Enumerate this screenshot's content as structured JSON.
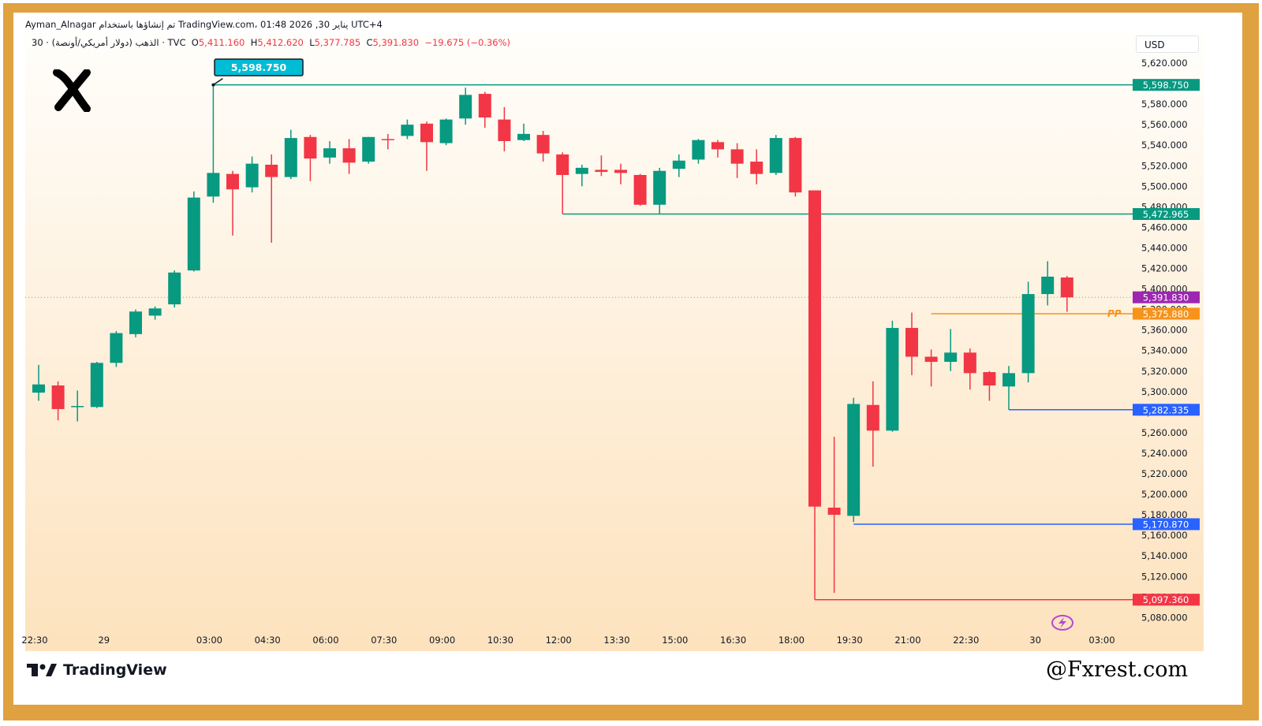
{
  "header": {
    "author": "Ayman_Alnagar",
    "created_with": "تم إنشاؤها باستخدام TradingView.com، 01:48 2026 ,30 يناير UTC+4"
  },
  "symbol_line": {
    "interval": "30",
    "description": "الذهب (دولار أمريكي/أونصة)",
    "source": "TVC",
    "open_label": "O",
    "open": "5,411.160",
    "high_label": "H",
    "high": "5,412.620",
    "low_label": "L",
    "low": "5,377.785",
    "close_label": "C",
    "close": "5,391.830",
    "change": "−19.675 (−0.36%)"
  },
  "currency": "USD",
  "branding": {
    "tradingview": "TradingView",
    "watermark": "@Fxrest.com"
  },
  "colors": {
    "bull": "#089981",
    "bear": "#f23645",
    "frame": "#e0a140",
    "pp": "#f7931a",
    "support_blue": "#2962ff",
    "low_red": "#f23645",
    "level_teal": "#089981",
    "last_price": "#9c27b0",
    "peak_callout": "#00bcd4"
  },
  "icons": {
    "logo": "x-logo-icon",
    "bolt": "lightning-bolt-icon",
    "tv": "tradingview-logo-icon"
  },
  "chart_data": {
    "type": "candlestick",
    "ylim": [
      5065,
      5630
    ],
    "y_ticks": [
      "5,620.000",
      "5,600.000",
      "5,580.000",
      "5,560.000",
      "5,540.000",
      "5,520.000",
      "5,500.000",
      "5,480.000",
      "5,460.000",
      "5,440.000",
      "5,420.000",
      "5,400.000",
      "5,380.000",
      "5,360.000",
      "5,340.000",
      "5,320.000",
      "5,300.000",
      "5,280.000",
      "5,260.000",
      "5,240.000",
      "5,220.000",
      "5,200.000",
      "5,180.000",
      "5,160.000",
      "5,140.000",
      "5,120.000",
      "5,100.000",
      "5,080.000"
    ],
    "x_tick_labels": [
      {
        "label": "22:30",
        "index": 0
      },
      {
        "label": "29",
        "index": 3
      },
      {
        "label": "03:00",
        "index": 9
      },
      {
        "label": "04:30",
        "index": 12
      },
      {
        "label": "06:00",
        "index": 15
      },
      {
        "label": "07:30",
        "index": 18
      },
      {
        "label": "09:00",
        "index": 21
      },
      {
        "label": "10:30",
        "index": 24
      },
      {
        "label": "12:00",
        "index": 27
      },
      {
        "label": "13:30",
        "index": 30
      },
      {
        "label": "15:00",
        "index": 33
      },
      {
        "label": "16:30",
        "index": 36
      },
      {
        "label": "18:00",
        "index": 39
      },
      {
        "label": "19:30",
        "index": 42
      },
      {
        "label": "21:00",
        "index": 45
      },
      {
        "label": "22:30",
        "index": 48
      },
      {
        "label": "30",
        "index": 51
      },
      {
        "label": "03:00",
        "index": 55
      }
    ],
    "candles": [
      {
        "o": 5299,
        "h": 5326,
        "l": 5291,
        "c": 5307
      },
      {
        "o": 5306,
        "h": 5310,
        "l": 5272,
        "c": 5283
      },
      {
        "o": 5286,
        "h": 5301,
        "l": 5271,
        "c": 5286
      },
      {
        "o": 5285,
        "h": 5329,
        "l": 5284,
        "c": 5328
      },
      {
        "o": 5328,
        "h": 5359,
        "l": 5324,
        "c": 5357
      },
      {
        "o": 5356,
        "h": 5380,
        "l": 5353,
        "c": 5378
      },
      {
        "o": 5374,
        "h": 5383,
        "l": 5370,
        "c": 5381
      },
      {
        "o": 5385,
        "h": 5418,
        "l": 5382,
        "c": 5416
      },
      {
        "o": 5418,
        "h": 5495,
        "l": 5417,
        "c": 5489
      },
      {
        "o": 5490,
        "h": 5598.75,
        "l": 5484,
        "c": 5513
      },
      {
        "o": 5512,
        "h": 5515,
        "l": 5452,
        "c": 5497
      },
      {
        "o": 5499,
        "h": 5529,
        "l": 5494,
        "c": 5522
      },
      {
        "o": 5521,
        "h": 5531,
        "l": 5445,
        "c": 5509
      },
      {
        "o": 5509,
        "h": 5555,
        "l": 5507,
        "c": 5547
      },
      {
        "o": 5548,
        "h": 5550,
        "l": 5505,
        "c": 5527
      },
      {
        "o": 5528,
        "h": 5544,
        "l": 5522,
        "c": 5537
      },
      {
        "o": 5537,
        "h": 5546,
        "l": 5512,
        "c": 5523
      },
      {
        "o": 5524,
        "h": 5548,
        "l": 5522,
        "c": 5548
      },
      {
        "o": 5546,
        "h": 5551,
        "l": 5536,
        "c": 5545
      },
      {
        "o": 5549,
        "h": 5565,
        "l": 5546,
        "c": 5560
      },
      {
        "o": 5561,
        "h": 5563,
        "l": 5515,
        "c": 5543
      },
      {
        "o": 5542,
        "h": 5566,
        "l": 5540,
        "c": 5565
      },
      {
        "o": 5566,
        "h": 5596,
        "l": 5560,
        "c": 5589
      },
      {
        "o": 5590,
        "h": 5592,
        "l": 5557,
        "c": 5567
      },
      {
        "o": 5565,
        "h": 5577,
        "l": 5534,
        "c": 5544
      },
      {
        "o": 5545,
        "h": 5561,
        "l": 5544,
        "c": 5551
      },
      {
        "o": 5550,
        "h": 5554,
        "l": 5524,
        "c": 5532
      },
      {
        "o": 5531,
        "h": 5533,
        "l": 5473,
        "c": 5511
      },
      {
        "o": 5512,
        "h": 5521,
        "l": 5500,
        "c": 5518
      },
      {
        "o": 5516,
        "h": 5530,
        "l": 5510,
        "c": 5514
      },
      {
        "o": 5516,
        "h": 5522,
        "l": 5502,
        "c": 5513
      },
      {
        "o": 5511,
        "h": 5512,
        "l": 5481,
        "c": 5482
      },
      {
        "o": 5482,
        "h": 5518,
        "l": 5473,
        "c": 5515
      },
      {
        "o": 5517,
        "h": 5531,
        "l": 5509,
        "c": 5525
      },
      {
        "o": 5526,
        "h": 5546,
        "l": 5522,
        "c": 5545
      },
      {
        "o": 5543,
        "h": 5545,
        "l": 5528,
        "c": 5536
      },
      {
        "o": 5536,
        "h": 5542,
        "l": 5508,
        "c": 5522
      },
      {
        "o": 5524,
        "h": 5536,
        "l": 5502,
        "c": 5512
      },
      {
        "o": 5513,
        "h": 5550,
        "l": 5511,
        "c": 5547
      },
      {
        "o": 5547,
        "h": 5548,
        "l": 5490,
        "c": 5494
      },
      {
        "o": 5496,
        "h": 5496,
        "l": 5097.36,
        "c": 5188
      },
      {
        "o": 5187,
        "h": 5256,
        "l": 5104,
        "c": 5180
      },
      {
        "o": 5179,
        "h": 5294,
        "l": 5173,
        "c": 5288
      },
      {
        "o": 5287,
        "h": 5310,
        "l": 5227,
        "c": 5262
      },
      {
        "o": 5262,
        "h": 5369,
        "l": 5261,
        "c": 5362
      },
      {
        "o": 5362,
        "h": 5377,
        "l": 5316,
        "c": 5334
      },
      {
        "o": 5334,
        "h": 5341,
        "l": 5305,
        "c": 5329
      },
      {
        "o": 5329,
        "h": 5361,
        "l": 5320,
        "c": 5338
      },
      {
        "o": 5338,
        "h": 5342,
        "l": 5302,
        "c": 5318
      },
      {
        "o": 5319,
        "h": 5320,
        "l": 5291,
        "c": 5306
      },
      {
        "o": 5305,
        "h": 5325,
        "l": 5282.335,
        "c": 5318
      },
      {
        "o": 5318,
        "h": 5407,
        "l": 5309,
        "c": 5395
      },
      {
        "o": 5395,
        "h": 5427,
        "l": 5384,
        "c": 5412
      },
      {
        "o": 5411.16,
        "h": 5412.62,
        "l": 5377.785,
        "c": 5391.83
      }
    ],
    "horizontal_levels": [
      {
        "value": 5598.75,
        "label": "5,598.750",
        "color": "#089981",
        "from_index": 9
      },
      {
        "value": 5472.965,
        "label": "5,472.965",
        "color": "#089981",
        "from_index": 27
      },
      {
        "value": 5375.88,
        "label": "5,375.880",
        "color": "#f7931a",
        "from_index": 46,
        "tag": "PP"
      },
      {
        "value": 5282.335,
        "label": "5,282.335",
        "color": "#2962ff",
        "from_index": 50
      },
      {
        "value": 5170.87,
        "label": "5,170.870",
        "color": "#2962ff",
        "from_index": 42
      },
      {
        "value": 5097.36,
        "label": "5,097.360",
        "color": "#f23645",
        "from_index": 40
      }
    ],
    "last_price": {
      "value": 5391.83,
      "label": "5,391.830",
      "color": "#9c27b0"
    },
    "peak_callout": {
      "value": 5598.75,
      "label": "5,598.750",
      "index": 9
    }
  }
}
